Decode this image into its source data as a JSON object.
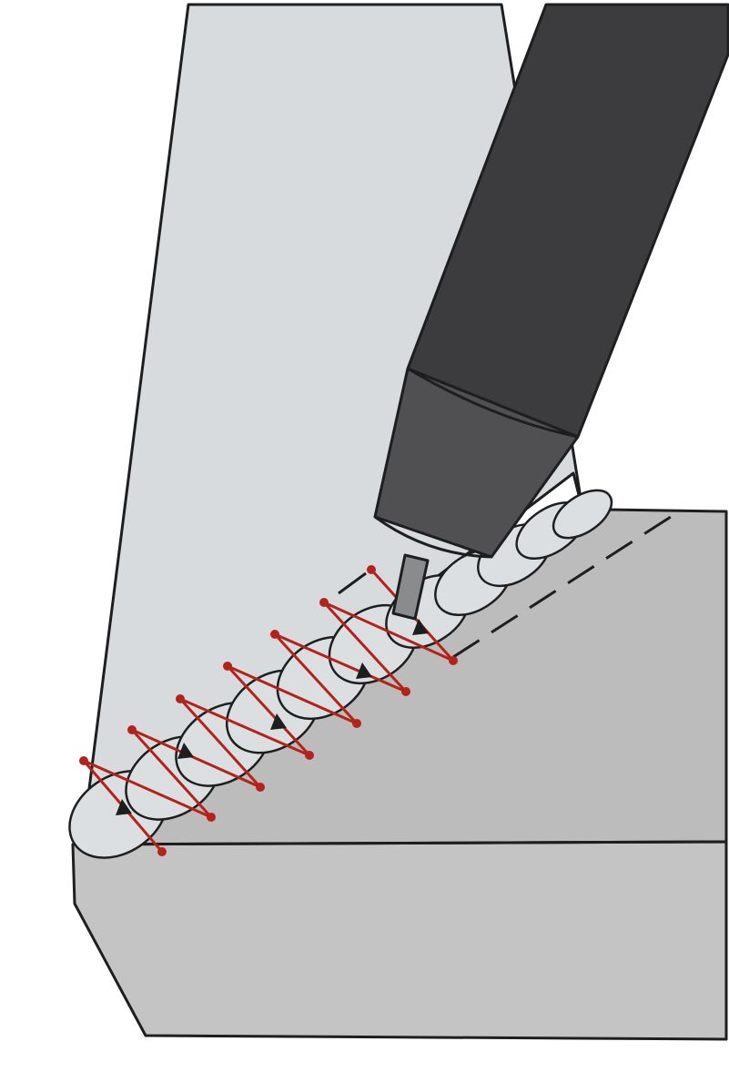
{
  "colors": {
    "vertical_plate": "#d8dbde",
    "base_plate_top": "#bcbcbc",
    "base_plate_front": "#c4c4c4",
    "weld_bead": "#dcdfe1",
    "weave_path": "#b3231a",
    "torch_barrel": "#3c3b3d",
    "torch_nozzle": "#505052",
    "electrode": "#8a8b8d",
    "outline": "#1e1e1e"
  },
  "icons": {
    "vertical_plate": "vertical-plate-icon",
    "base_plate": "base-plate-icon",
    "weld_bead": "weld-bead-icon",
    "weave_path": "weave-pattern-icon",
    "torch": "welding-torch-icon",
    "electrode": "electrode-wire-icon"
  },
  "weave": {
    "pattern": "zigzag",
    "direction": "along-joint-toward-torch",
    "arrow_count": 6
  }
}
